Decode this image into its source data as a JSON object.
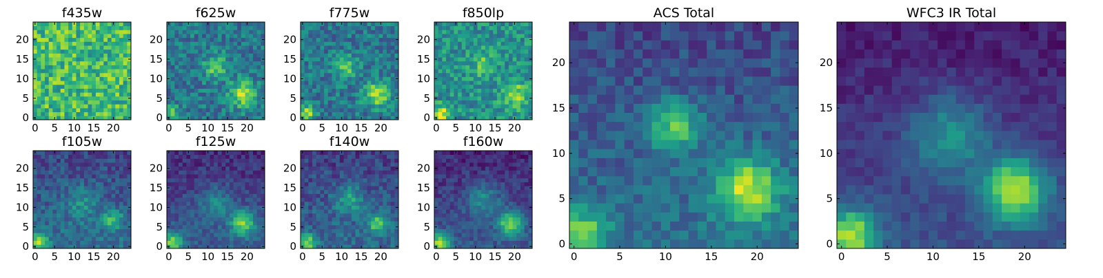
{
  "colormap": "viridis",
  "colors": {
    "viridis": [
      "#440154",
      "#482878",
      "#3e4a89",
      "#31688e",
      "#26828e",
      "#1f9e89",
      "#35b779",
      "#6ece58",
      "#b5de2b",
      "#fde725"
    ],
    "frame": "#000000",
    "background": "#ffffff"
  },
  "chart_data": [
    {
      "type": "heatmap",
      "title": "f435w",
      "grid": [
        25,
        25
      ],
      "xlim": [
        0,
        24
      ],
      "ylim": [
        0,
        24
      ],
      "xticks": [
        0,
        5,
        10,
        15,
        20
      ],
      "yticks": [
        0,
        5,
        10,
        15,
        20
      ],
      "xtick_labels": [
        "0",
        "5",
        "10",
        "15",
        "20"
      ],
      "ytick_labels": [
        "0",
        "5",
        "10",
        "15",
        "20"
      ],
      "sources": [],
      "noise": 0.22,
      "base": 0.68,
      "seed": 11
    },
    {
      "type": "heatmap",
      "title": "f625w",
      "grid": [
        25,
        25
      ],
      "xlim": [
        0,
        24
      ],
      "ylim": [
        0,
        24
      ],
      "xticks": [
        0,
        5,
        10,
        15,
        20
      ],
      "yticks": [
        0,
        5,
        10,
        15,
        20
      ],
      "xtick_labels": [
        "0",
        "5",
        "10",
        "15",
        "20"
      ],
      "ytick_labels": [
        "0",
        "5",
        "10",
        "15",
        "20"
      ],
      "sources": [
        {
          "x": 12,
          "y": 13,
          "amp": 0.35,
          "sigma": 2.2
        },
        {
          "x": 19,
          "y": 6,
          "amp": 0.5,
          "sigma": 2.3
        },
        {
          "x": 1,
          "y": 1,
          "amp": 0.3,
          "sigma": 1.5
        }
      ],
      "noise": 0.17,
      "base": 0.4,
      "seed": 23
    },
    {
      "type": "heatmap",
      "title": "f775w",
      "grid": [
        25,
        25
      ],
      "xlim": [
        0,
        24
      ],
      "ylim": [
        0,
        24
      ],
      "xticks": [
        0,
        5,
        10,
        15,
        20
      ],
      "yticks": [
        0,
        5,
        10,
        15,
        20
      ],
      "xtick_labels": [
        "0",
        "5",
        "10",
        "15",
        "20"
      ],
      "ytick_labels": [
        "0",
        "5",
        "10",
        "15",
        "20"
      ],
      "sources": [
        {
          "x": 11,
          "y": 13,
          "amp": 0.35,
          "sigma": 2.0
        },
        {
          "x": 19,
          "y": 6,
          "amp": 0.5,
          "sigma": 2.2
        },
        {
          "x": 1,
          "y": 1,
          "amp": 0.45,
          "sigma": 1.5
        }
      ],
      "noise": 0.17,
      "base": 0.4,
      "seed": 37
    },
    {
      "type": "heatmap",
      "title": "f850lp",
      "grid": [
        25,
        25
      ],
      "xlim": [
        0,
        24
      ],
      "ylim": [
        0,
        24
      ],
      "xticks": [
        0,
        5,
        10,
        15,
        20
      ],
      "yticks": [
        0,
        5,
        10,
        15,
        20
      ],
      "xtick_labels": [
        "0",
        "5",
        "10",
        "15",
        "20"
      ],
      "ytick_labels": [
        "0",
        "5",
        "10",
        "15",
        "20"
      ],
      "sources": [
        {
          "x": 12,
          "y": 14,
          "amp": 0.25,
          "sigma": 2.2
        },
        {
          "x": 20,
          "y": 6,
          "amp": 0.35,
          "sigma": 2.2
        },
        {
          "x": 1,
          "y": 1,
          "amp": 0.5,
          "sigma": 1.5
        }
      ],
      "noise": 0.18,
      "base": 0.5,
      "seed": 41
    },
    {
      "type": "heatmap",
      "title": "f105w",
      "grid": [
        25,
        25
      ],
      "xlim": [
        0,
        24
      ],
      "ylim": [
        0,
        24
      ],
      "xticks": [
        0,
        5,
        10,
        15,
        20
      ],
      "yticks": [
        0,
        5,
        10,
        15,
        20
      ],
      "xtick_labels": [
        "0",
        "5",
        "10",
        "15",
        "20"
      ],
      "ytick_labels": [
        "0",
        "5",
        "10",
        "15",
        "20"
      ],
      "sources": [
        {
          "x": 12,
          "y": 11,
          "amp": 0.2,
          "sigma": 3.0
        },
        {
          "x": 20,
          "y": 7,
          "amp": 0.4,
          "sigma": 1.6
        },
        {
          "x": 1,
          "y": 1,
          "amp": 0.5,
          "sigma": 1.6
        }
      ],
      "noise": 0.13,
      "base": 0.38,
      "seed": 53
    },
    {
      "type": "heatmap",
      "title": "f125w",
      "grid": [
        25,
        25
      ],
      "xlim": [
        0,
        24
      ],
      "ylim": [
        0,
        24
      ],
      "xticks": [
        0,
        5,
        10,
        15,
        20
      ],
      "yticks": [
        0,
        5,
        10,
        15,
        20
      ],
      "xtick_labels": [
        "0",
        "5",
        "10",
        "15",
        "20"
      ],
      "ytick_labels": [
        "0",
        "5",
        "10",
        "15",
        "20"
      ],
      "sources": [
        {
          "x": 12,
          "y": 11,
          "amp": 0.25,
          "sigma": 3.0
        },
        {
          "x": 19,
          "y": 6,
          "amp": 0.55,
          "sigma": 2.2
        },
        {
          "x": 1,
          "y": 1,
          "amp": 0.55,
          "sigma": 1.8
        }
      ],
      "noise": 0.1,
      "base": 0.3,
      "seed": 67
    },
    {
      "type": "heatmap",
      "title": "f140w",
      "grid": [
        25,
        25
      ],
      "xlim": [
        0,
        24
      ],
      "ylim": [
        0,
        24
      ],
      "xticks": [
        0,
        5,
        10,
        15,
        20
      ],
      "yticks": [
        0,
        5,
        10,
        15,
        20
      ],
      "xtick_labels": [
        "0",
        "5",
        "10",
        "15",
        "20"
      ],
      "ytick_labels": [
        "0",
        "5",
        "10",
        "15",
        "20"
      ],
      "sources": [
        {
          "x": 12,
          "y": 12,
          "amp": 0.3,
          "sigma": 2.8
        },
        {
          "x": 19,
          "y": 6,
          "amp": 0.45,
          "sigma": 1.8
        },
        {
          "x": 1,
          "y": 1,
          "amp": 0.5,
          "sigma": 1.6
        }
      ],
      "noise": 0.13,
      "base": 0.35,
      "seed": 79
    },
    {
      "type": "heatmap",
      "title": "f160w",
      "grid": [
        25,
        25
      ],
      "xlim": [
        0,
        24
      ],
      "ylim": [
        0,
        24
      ],
      "xticks": [
        0,
        5,
        10,
        15,
        20
      ],
      "yticks": [
        0,
        5,
        10,
        15,
        20
      ],
      "xtick_labels": [
        "0",
        "5",
        "10",
        "15",
        "20"
      ],
      "ytick_labels": [
        "0",
        "5",
        "10",
        "15",
        "20"
      ],
      "sources": [
        {
          "x": 12,
          "y": 12,
          "amp": 0.3,
          "sigma": 3.0
        },
        {
          "x": 19,
          "y": 6,
          "amp": 0.6,
          "sigma": 2.2
        },
        {
          "x": 1,
          "y": 1,
          "amp": 0.6,
          "sigma": 1.8
        }
      ],
      "noise": 0.1,
      "base": 0.28,
      "seed": 83
    },
    {
      "type": "heatmap",
      "title": "ACS Total",
      "grid": [
        25,
        25
      ],
      "xlim": [
        0,
        24
      ],
      "ylim": [
        0,
        24
      ],
      "xticks": [
        0,
        5,
        10,
        15,
        20
      ],
      "yticks": [
        0,
        5,
        10,
        15,
        20
      ],
      "xtick_labels": [
        "0",
        "5",
        "10",
        "15",
        "20"
      ],
      "ytick_labels": [
        "0",
        "5",
        "10",
        "15",
        "20"
      ],
      "sources": [
        {
          "x": 11,
          "y": 13,
          "amp": 0.45,
          "sigma": 2.0
        },
        {
          "x": 19,
          "y": 6,
          "amp": 0.6,
          "sigma": 2.4
        },
        {
          "x": 1,
          "y": 1,
          "amp": 0.5,
          "sigma": 1.8
        }
      ],
      "noise": 0.11,
      "base": 0.38,
      "seed": 97
    },
    {
      "type": "heatmap",
      "title": "WFC3 IR Total",
      "grid": [
        25,
        25
      ],
      "xlim": [
        0,
        24
      ],
      "ylim": [
        0,
        24
      ],
      "xticks": [
        0,
        5,
        10,
        15,
        20
      ],
      "yticks": [
        0,
        5,
        10,
        15,
        20
      ],
      "xtick_labels": [
        "0",
        "5",
        "10",
        "15",
        "20"
      ],
      "ytick_labels": [
        "0",
        "5",
        "10",
        "15",
        "20"
      ],
      "sources": [
        {
          "x": 12,
          "y": 12,
          "amp": 0.35,
          "sigma": 3.0
        },
        {
          "x": 19,
          "y": 6,
          "amp": 0.7,
          "sigma": 2.4
        },
        {
          "x": 1,
          "y": 1,
          "amp": 0.65,
          "sigma": 2.0
        }
      ],
      "noise": 0.07,
      "base": 0.25,
      "seed": 101
    }
  ]
}
